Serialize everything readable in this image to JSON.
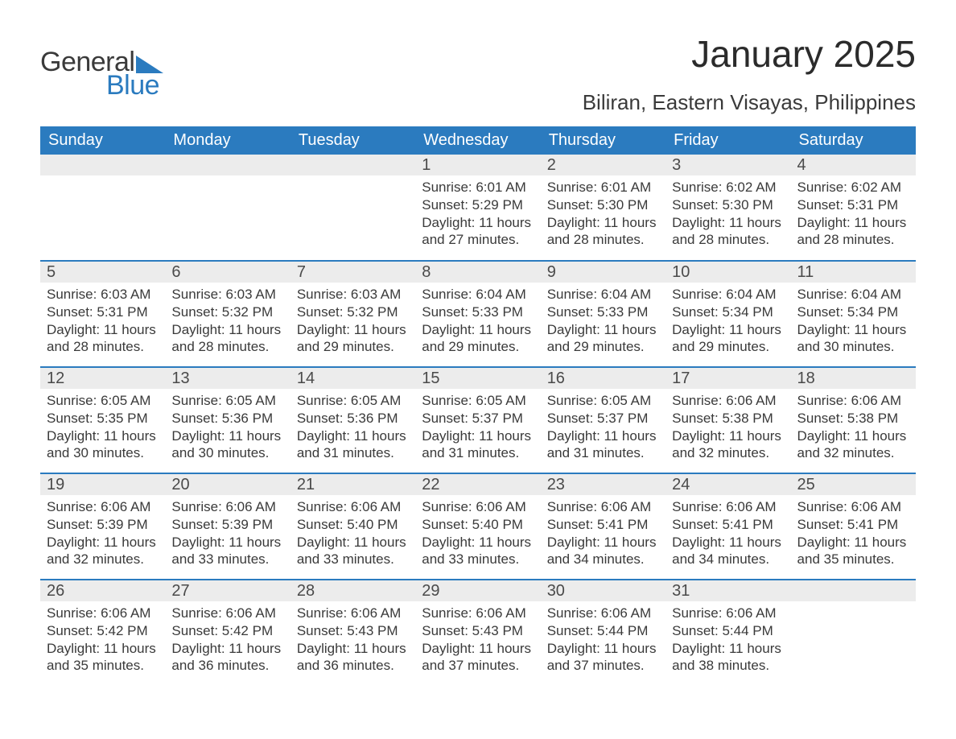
{
  "logo": {
    "text1": "General",
    "text2": "Blue",
    "shape_color": "#2b7bbf"
  },
  "title": "January 2025",
  "location": "Biliran, Eastern Visayas, Philippines",
  "colors": {
    "header_bg": "#2b7bbf",
    "header_text": "#ffffff",
    "daynum_bg": "#ececec",
    "row_border": "#2b7bbf",
    "body_text": "#3a3a3a",
    "page_bg": "#ffffff"
  },
  "typography": {
    "title_fontsize": 46,
    "location_fontsize": 26,
    "weekday_fontsize": 20,
    "daynum_fontsize": 20,
    "cell_fontsize": 17
  },
  "calendar": {
    "type": "table",
    "columns": [
      "Sunday",
      "Monday",
      "Tuesday",
      "Wednesday",
      "Thursday",
      "Friday",
      "Saturday"
    ],
    "weeks": [
      [
        null,
        null,
        null,
        {
          "day": "1",
          "sunrise": "6:01 AM",
          "sunset": "5:29 PM",
          "daylight": "11 hours and 27 minutes."
        },
        {
          "day": "2",
          "sunrise": "6:01 AM",
          "sunset": "5:30 PM",
          "daylight": "11 hours and 28 minutes."
        },
        {
          "day": "3",
          "sunrise": "6:02 AM",
          "sunset": "5:30 PM",
          "daylight": "11 hours and 28 minutes."
        },
        {
          "day": "4",
          "sunrise": "6:02 AM",
          "sunset": "5:31 PM",
          "daylight": "11 hours and 28 minutes."
        }
      ],
      [
        {
          "day": "5",
          "sunrise": "6:03 AM",
          "sunset": "5:31 PM",
          "daylight": "11 hours and 28 minutes."
        },
        {
          "day": "6",
          "sunrise": "6:03 AM",
          "sunset": "5:32 PM",
          "daylight": "11 hours and 28 minutes."
        },
        {
          "day": "7",
          "sunrise": "6:03 AM",
          "sunset": "5:32 PM",
          "daylight": "11 hours and 29 minutes."
        },
        {
          "day": "8",
          "sunrise": "6:04 AM",
          "sunset": "5:33 PM",
          "daylight": "11 hours and 29 minutes."
        },
        {
          "day": "9",
          "sunrise": "6:04 AM",
          "sunset": "5:33 PM",
          "daylight": "11 hours and 29 minutes."
        },
        {
          "day": "10",
          "sunrise": "6:04 AM",
          "sunset": "5:34 PM",
          "daylight": "11 hours and 29 minutes."
        },
        {
          "day": "11",
          "sunrise": "6:04 AM",
          "sunset": "5:34 PM",
          "daylight": "11 hours and 30 minutes."
        }
      ],
      [
        {
          "day": "12",
          "sunrise": "6:05 AM",
          "sunset": "5:35 PM",
          "daylight": "11 hours and 30 minutes."
        },
        {
          "day": "13",
          "sunrise": "6:05 AM",
          "sunset": "5:36 PM",
          "daylight": "11 hours and 30 minutes."
        },
        {
          "day": "14",
          "sunrise": "6:05 AM",
          "sunset": "5:36 PM",
          "daylight": "11 hours and 31 minutes."
        },
        {
          "day": "15",
          "sunrise": "6:05 AM",
          "sunset": "5:37 PM",
          "daylight": "11 hours and 31 minutes."
        },
        {
          "day": "16",
          "sunrise": "6:05 AM",
          "sunset": "5:37 PM",
          "daylight": "11 hours and 31 minutes."
        },
        {
          "day": "17",
          "sunrise": "6:06 AM",
          "sunset": "5:38 PM",
          "daylight": "11 hours and 32 minutes."
        },
        {
          "day": "18",
          "sunrise": "6:06 AM",
          "sunset": "5:38 PM",
          "daylight": "11 hours and 32 minutes."
        }
      ],
      [
        {
          "day": "19",
          "sunrise": "6:06 AM",
          "sunset": "5:39 PM",
          "daylight": "11 hours and 32 minutes."
        },
        {
          "day": "20",
          "sunrise": "6:06 AM",
          "sunset": "5:39 PM",
          "daylight": "11 hours and 33 minutes."
        },
        {
          "day": "21",
          "sunrise": "6:06 AM",
          "sunset": "5:40 PM",
          "daylight": "11 hours and 33 minutes."
        },
        {
          "day": "22",
          "sunrise": "6:06 AM",
          "sunset": "5:40 PM",
          "daylight": "11 hours and 33 minutes."
        },
        {
          "day": "23",
          "sunrise": "6:06 AM",
          "sunset": "5:41 PM",
          "daylight": "11 hours and 34 minutes."
        },
        {
          "day": "24",
          "sunrise": "6:06 AM",
          "sunset": "5:41 PM",
          "daylight": "11 hours and 34 minutes."
        },
        {
          "day": "25",
          "sunrise": "6:06 AM",
          "sunset": "5:41 PM",
          "daylight": "11 hours and 35 minutes."
        }
      ],
      [
        {
          "day": "26",
          "sunrise": "6:06 AM",
          "sunset": "5:42 PM",
          "daylight": "11 hours and 35 minutes."
        },
        {
          "day": "27",
          "sunrise": "6:06 AM",
          "sunset": "5:42 PM",
          "daylight": "11 hours and 36 minutes."
        },
        {
          "day": "28",
          "sunrise": "6:06 AM",
          "sunset": "5:43 PM",
          "daylight": "11 hours and 36 minutes."
        },
        {
          "day": "29",
          "sunrise": "6:06 AM",
          "sunset": "5:43 PM",
          "daylight": "11 hours and 37 minutes."
        },
        {
          "day": "30",
          "sunrise": "6:06 AM",
          "sunset": "5:44 PM",
          "daylight": "11 hours and 37 minutes."
        },
        {
          "day": "31",
          "sunrise": "6:06 AM",
          "sunset": "5:44 PM",
          "daylight": "11 hours and 38 minutes."
        },
        null
      ]
    ],
    "labels": {
      "sunrise": "Sunrise:",
      "sunset": "Sunset:",
      "daylight": "Daylight:"
    }
  }
}
